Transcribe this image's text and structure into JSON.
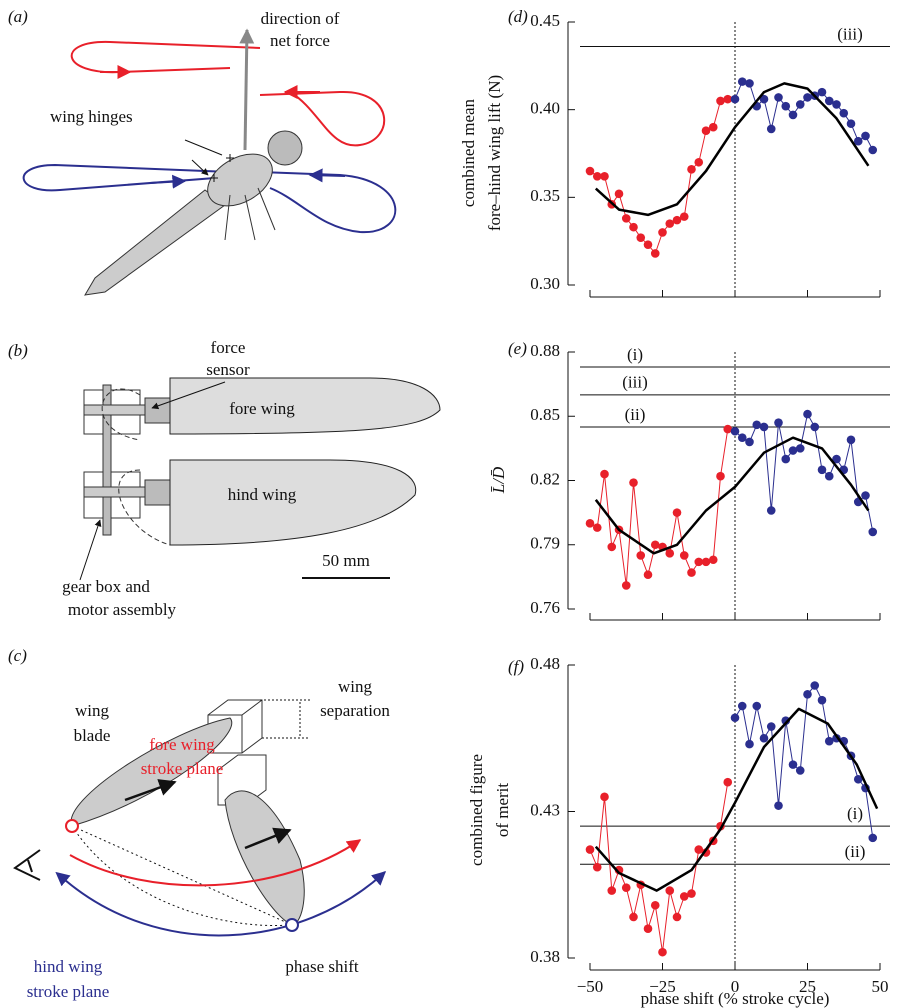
{
  "panels": {
    "a": {
      "label": "(a)",
      "texts": [
        "direction of",
        "net force",
        "wing hinges"
      ]
    },
    "b": {
      "label": "(b)",
      "texts": [
        "force",
        "sensor",
        "fore wing",
        "hind wing",
        "50 mm",
        "gear box and",
        "motor assembly"
      ]
    },
    "c": {
      "label": "(c)",
      "texts": [
        "wing",
        "blade",
        "wing",
        "separation",
        "fore wing",
        "stroke plane",
        "phase shift",
        "hind wing",
        "stroke plane"
      ]
    }
  },
  "chart_data": [
    {
      "type": "scatter",
      "panel": "(d)",
      "ylabel": [
        "combined mean",
        "fore–hind wing lift (N)"
      ],
      "xlim": [
        -50,
        50
      ],
      "xticks": [
        -50,
        -25,
        0,
        25,
        50
      ],
      "xtick_labels": false,
      "ylim": [
        0.3,
        0.45
      ],
      "yticks": [
        {
          "value": 0.3,
          "label": "0.30"
        },
        0.35,
        {
          "value": 0.4,
          "label": "0.40"
        },
        0.45
      ],
      "vline": 0,
      "hlines": [
        {
          "value": 0.436,
          "label": "(iii)"
        }
      ],
      "series": [
        {
          "color": "#e8202a",
          "markers": true,
          "x": [
            -50,
            -47.5,
            -45,
            -42.5,
            -40,
            -37.5,
            -35,
            -32.5,
            -30,
            -27.5,
            -25,
            -22.5,
            -20,
            -17.5,
            -15,
            -12.5,
            -10,
            -7.5,
            -5,
            -2.5
          ],
          "values": [
            0.365,
            0.362,
            0.362,
            0.346,
            0.352,
            0.338,
            0.333,
            0.327,
            0.323,
            0.318,
            0.33,
            0.335,
            0.337,
            0.339,
            0.366,
            0.37,
            0.388,
            0.39,
            0.405,
            0.406
          ]
        },
        {
          "color": "#2b2f8f",
          "markers": true,
          "x": [
            0,
            2.5,
            5,
            7.5,
            10,
            12.5,
            15,
            17.5,
            20,
            22.5,
            25,
            27.5,
            30,
            32.5,
            35,
            37.5,
            40,
            42.5,
            45,
            47.5
          ],
          "values": [
            0.406,
            0.416,
            0.415,
            0.402,
            0.406,
            0.389,
            0.407,
            0.402,
            0.397,
            0.403,
            0.407,
            0.408,
            0.41,
            0.405,
            0.403,
            0.398,
            0.392,
            0.382,
            0.385,
            0.377
          ]
        },
        {
          "color": "#000000",
          "markers": false,
          "x": [
            -48,
            -40,
            -30,
            -20,
            -10,
            0,
            10,
            17,
            25,
            35,
            46
          ],
          "values": [
            0.355,
            0.343,
            0.34,
            0.346,
            0.365,
            0.39,
            0.41,
            0.415,
            0.412,
            0.395,
            0.368
          ]
        }
      ]
    },
    {
      "type": "scatter",
      "panel": "(e)",
      "ylabel": [
        "L̄/D̄"
      ],
      "xlim": [
        -50,
        50
      ],
      "xticks": [
        -50,
        -25,
        0,
        25,
        50
      ],
      "xtick_labels": false,
      "ylim": [
        0.76,
        0.88
      ],
      "yticks": [
        0.76,
        0.79,
        0.82,
        0.85,
        0.88
      ],
      "vline": 0,
      "hlines": [
        {
          "value": 0.873,
          "label": "(i)"
        },
        {
          "value": 0.86,
          "label": "(iii)"
        },
        {
          "value": 0.845,
          "label": "(ii)"
        }
      ],
      "series": [
        {
          "color": "#e8202a",
          "markers": true,
          "x": [
            -50,
            -47.5,
            -45,
            -42.5,
            -40,
            -37.5,
            -35,
            -32.5,
            -30,
            -27.5,
            -25,
            -22.5,
            -20,
            -17.5,
            -15,
            -12.5,
            -10,
            -7.5,
            -5,
            -2.5
          ],
          "values": [
            0.8,
            0.798,
            0.823,
            0.789,
            0.797,
            0.771,
            0.819,
            0.785,
            0.776,
            0.79,
            0.789,
            0.786,
            0.805,
            0.785,
            0.777,
            0.782,
            0.782,
            0.783,
            0.822,
            0.844
          ]
        },
        {
          "color": "#2b2f8f",
          "markers": true,
          "x": [
            0,
            2.5,
            5,
            7.5,
            10,
            12.5,
            15,
            17.5,
            20,
            22.5,
            25,
            27.5,
            30,
            32.5,
            35,
            37.5,
            40,
            42.5,
            45,
            47.5
          ],
          "values": [
            0.843,
            0.84,
            0.838,
            0.846,
            0.845,
            0.806,
            0.847,
            0.83,
            0.834,
            0.835,
            0.851,
            0.845,
            0.825,
            0.822,
            0.83,
            0.825,
            0.839,
            0.81,
            0.813,
            0.796
          ]
        },
        {
          "color": "#000000",
          "markers": false,
          "x": [
            -48,
            -40,
            -28,
            -20,
            -10,
            0,
            10,
            20,
            30,
            40,
            46
          ],
          "values": [
            0.811,
            0.797,
            0.786,
            0.79,
            0.806,
            0.817,
            0.833,
            0.84,
            0.835,
            0.818,
            0.806
          ]
        }
      ]
    },
    {
      "type": "scatter",
      "panel": "(f)",
      "ylabel": [
        "combined figure",
        "of merit"
      ],
      "xlabel": "phase shift (% stroke cycle)",
      "xlim": [
        -50,
        50
      ],
      "xticks": [
        {
          "value": -50,
          "label": "−50"
        },
        {
          "value": -25,
          "label": "−25"
        },
        0,
        25,
        50
      ],
      "xtick_labels": true,
      "ylim": [
        0.38,
        0.48
      ],
      "yticks": [
        0.38,
        0.43,
        0.48
      ],
      "vline": 0,
      "hlines": [
        {
          "value": 0.425,
          "label": "(i)"
        },
        {
          "value": 0.412,
          "label": "(ii)"
        }
      ],
      "series": [
        {
          "color": "#e8202a",
          "markers": true,
          "x": [
            -50,
            -47.5,
            -45,
            -42.5,
            -40,
            -37.5,
            -35,
            -32.5,
            -30,
            -27.5,
            -25,
            -22.5,
            -20,
            -17.5,
            -15,
            -12.5,
            -10,
            -7.5,
            -5,
            -2.5
          ],
          "values": [
            0.417,
            0.411,
            0.435,
            0.403,
            0.41,
            0.404,
            0.394,
            0.405,
            0.39,
            0.398,
            0.382,
            0.403,
            0.394,
            0.401,
            0.402,
            0.417,
            0.416,
            0.42,
            0.425,
            0.44
          ]
        },
        {
          "color": "#2b2f8f",
          "markers": true,
          "x": [
            0,
            2.5,
            5,
            7.5,
            10,
            12.5,
            15,
            17.5,
            20,
            22.5,
            25,
            27.5,
            30,
            32.5,
            35,
            37.5,
            40,
            42.5,
            45,
            47.5
          ],
          "values": [
            0.462,
            0.466,
            0.453,
            0.466,
            0.455,
            0.459,
            0.432,
            0.461,
            0.446,
            0.444,
            0.47,
            0.473,
            0.468,
            0.454,
            0.455,
            0.454,
            0.449,
            0.441,
            0.438,
            0.421
          ]
        },
        {
          "color": "#000000",
          "markers": false,
          "x": [
            -48,
            -40,
            -27,
            -15,
            -5,
            0,
            10,
            22,
            32,
            42,
            49
          ],
          "values": [
            0.418,
            0.409,
            0.403,
            0.41,
            0.424,
            0.433,
            0.452,
            0.465,
            0.46,
            0.446,
            0.431
          ]
        }
      ]
    }
  ]
}
